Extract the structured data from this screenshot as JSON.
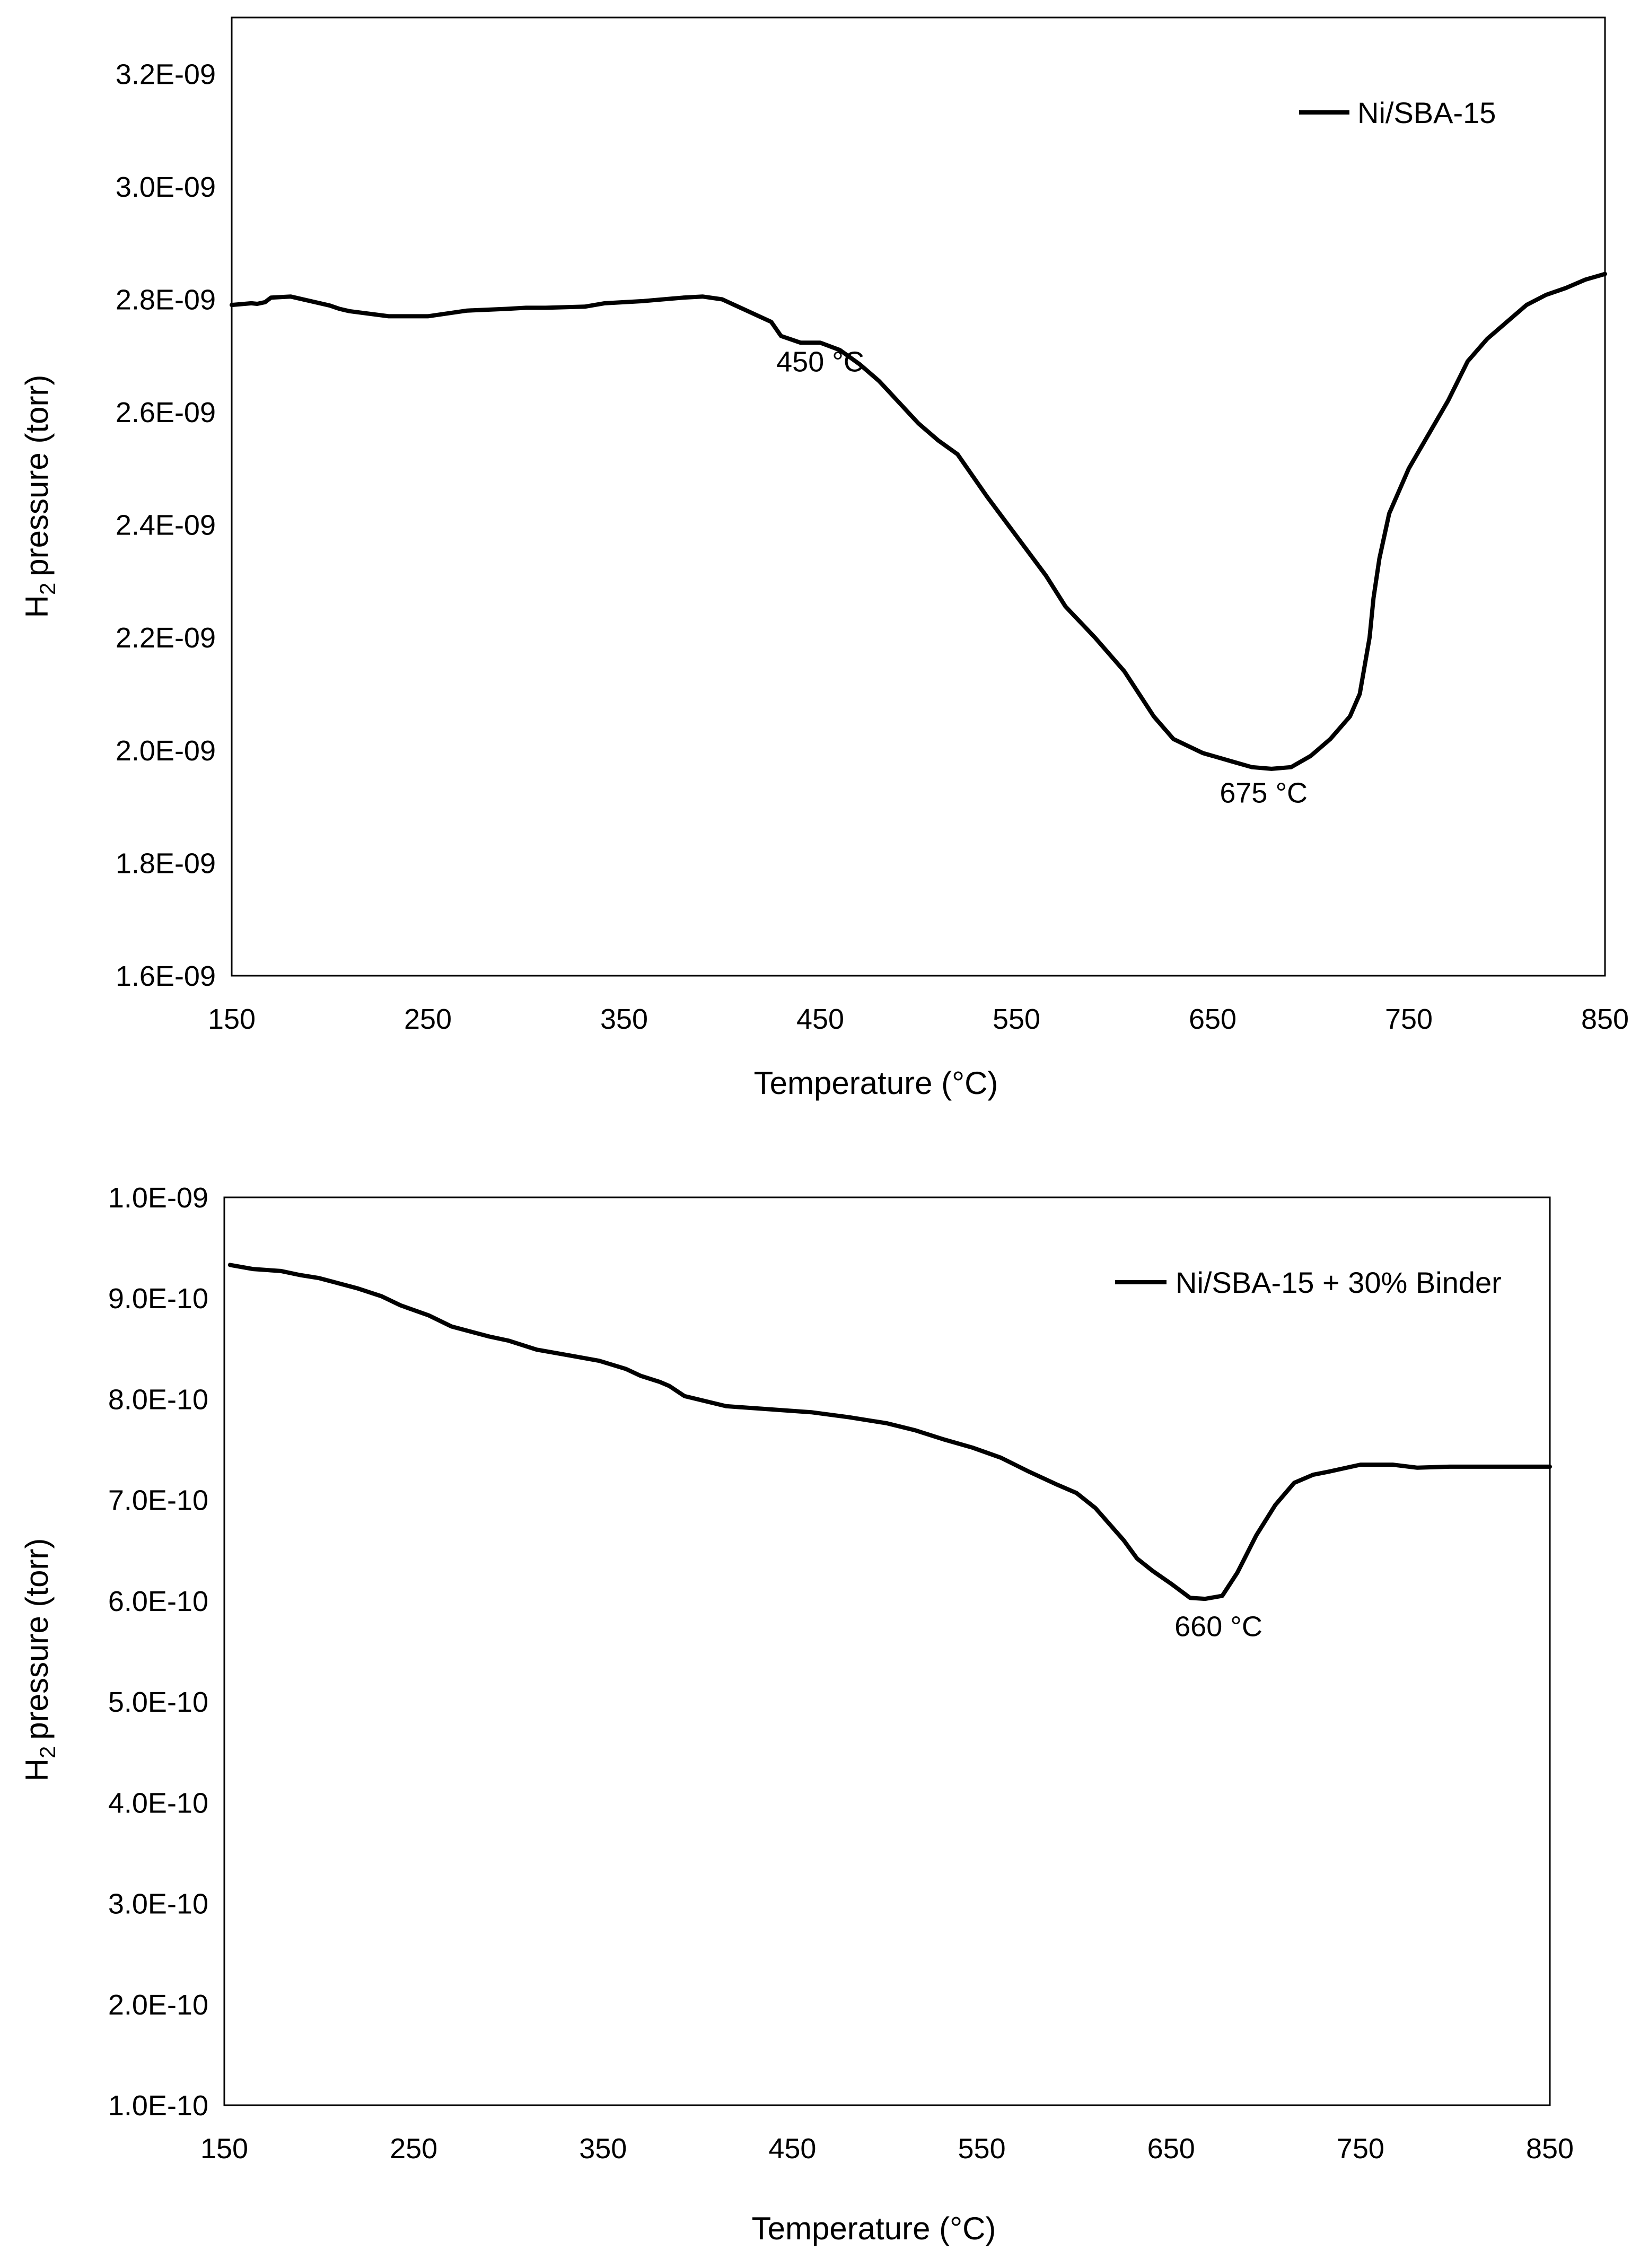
{
  "chart_data": [
    {
      "type": "line",
      "title": "",
      "xlabel": "Temperature (°C)",
      "ylabel": "pressure (torr)",
      "ylabel_main": "H",
      "ylabel_sub": "2",
      "xlim": [
        150,
        850
      ],
      "ylim": [
        1.6e-09,
        3.3e-09
      ],
      "grid": false,
      "legend_position": "top-right",
      "x_ticks": [
        150,
        250,
        350,
        450,
        550,
        650,
        750,
        850
      ],
      "x_tick_labels": [
        "150",
        "250",
        "350",
        "450",
        "550",
        "650",
        "750",
        "850"
      ],
      "y_ticks": [
        1.6e-09,
        1.8e-09,
        2e-09,
        2.2e-09,
        2.4e-09,
        2.6e-09,
        2.8e-09,
        3e-09,
        3.2e-09
      ],
      "y_tick_labels": [
        "1.6E-09",
        "1.8E-09",
        "2.0E-09",
        "2.2E-09",
        "2.4E-09",
        "2.6E-09",
        "2.8E-09",
        "3.0E-09",
        "3.2E-09"
      ],
      "series": [
        {
          "name": "Ni/SBA-15",
          "color": "#000000",
          "x": [
            150,
            160,
            163,
            167,
            170,
            180,
            190,
            200,
            205,
            210,
            230,
            250,
            270,
            290,
            300,
            310,
            330,
            340,
            360,
            380,
            390,
            400,
            425,
            430,
            440,
            450,
            460,
            470,
            480,
            500,
            510,
            520,
            535,
            550,
            565,
            575,
            590,
            605,
            620,
            630,
            645,
            660,
            670,
            680,
            690,
            700,
            710,
            720,
            725,
            728,
            730,
            732,
            735,
            740,
            750,
            770,
            780,
            790,
            800,
            810,
            820,
            830,
            840,
            850
          ],
          "y": [
            2.79e-09,
            2.793e-09,
            2.792e-09,
            2.795e-09,
            2.803e-09,
            2.805e-09,
            2.797e-09,
            2.789e-09,
            2.783e-09,
            2.779e-09,
            2.77e-09,
            2.77e-09,
            2.78e-09,
            2.783e-09,
            2.785e-09,
            2.785e-09,
            2.787e-09,
            2.793e-09,
            2.797e-09,
            2.803e-09,
            2.805e-09,
            2.8e-09,
            2.76e-09,
            2.735e-09,
            2.723e-09,
            2.723e-09,
            2.71e-09,
            2.685e-09,
            2.655e-09,
            2.58e-09,
            2.55e-09,
            2.525e-09,
            2.45e-09,
            2.38e-09,
            2.31e-09,
            2.255e-09,
            2.2e-09,
            2.14e-09,
            2.06e-09,
            2.02e-09,
            1.995e-09,
            1.98e-09,
            1.97e-09,
            1.967e-09,
            1.97e-09,
            1.99e-09,
            2.02e-09,
            2.06e-09,
            2.1e-09,
            2.16e-09,
            2.2e-09,
            2.27e-09,
            2.34e-09,
            2.42e-09,
            2.5e-09,
            2.62e-09,
            2.69e-09,
            2.73e-09,
            2.76e-09,
            2.79e-09,
            2.808e-09,
            2.82e-09,
            2.835e-09,
            2.845e-09
          ]
        }
      ],
      "annotations": [
        {
          "text": "450 °C",
          "x": 450,
          "y": 2.69e-09
        },
        {
          "text": "675 °C",
          "x": 676,
          "y": 1.925e-09
        }
      ]
    },
    {
      "type": "line",
      "title": "",
      "xlabel": "Temperature (°C)",
      "ylabel": "pressure (torr)",
      "ylabel_main": "H",
      "ylabel_sub": "2",
      "xlim": [
        150,
        850
      ],
      "ylim": [
        1e-10,
        1e-09
      ],
      "grid": false,
      "legend_position": "top-right",
      "x_ticks": [
        150,
        250,
        350,
        450,
        550,
        650,
        750,
        850
      ],
      "x_tick_labels": [
        "150",
        "250",
        "350",
        "450",
        "550",
        "650",
        "750",
        "850"
      ],
      "y_ticks": [
        1e-10,
        2e-10,
        3e-10,
        4e-10,
        5e-10,
        6e-10,
        7e-10,
        8e-10,
        9e-10,
        1e-09
      ],
      "y_tick_labels": [
        "1.0E-10",
        "2.0E-10",
        "3.0E-10",
        "4.0E-10",
        "5.0E-10",
        "6.0E-10",
        "7.0E-10",
        "8.0E-10",
        "9.0E-10",
        "1.0E-09"
      ],
      "series": [
        {
          "name": "Ni/SBA-15 + 30% Binder",
          "color": "#000000",
          "x": [
            153,
            165,
            180,
            190,
            200,
            210,
            220,
            233,
            243,
            258,
            270,
            290,
            300,
            315,
            333,
            348,
            362,
            370,
            380,
            385,
            393,
            415,
            460,
            480,
            500,
            515,
            530,
            545,
            560,
            575,
            590,
            600,
            610,
            625,
            632,
            640,
            650,
            660,
            668,
            677,
            685,
            695,
            705,
            715,
            725,
            733,
            750,
            767,
            780,
            797,
            830,
            850
          ],
          "y": [
            9.33e-10,
            9.29e-10,
            9.27e-10,
            9.23e-10,
            9.2e-10,
            9.15e-10,
            9.1e-10,
            9.02e-10,
            8.93e-10,
            8.83e-10,
            8.72e-10,
            8.62e-10,
            8.58e-10,
            8.49e-10,
            8.43e-10,
            8.38e-10,
            8.3e-10,
            8.23e-10,
            8.17e-10,
            8.13e-10,
            8.03e-10,
            7.93e-10,
            7.87e-10,
            7.82e-10,
            7.76e-10,
            7.69e-10,
            7.6e-10,
            7.52e-10,
            7.42e-10,
            7.28e-10,
            7.15e-10,
            7.07e-10,
            6.92e-10,
            6.6e-10,
            6.42e-10,
            6.3e-10,
            6.17e-10,
            6.03e-10,
            6.02e-10,
            6.05e-10,
            6.28e-10,
            6.65e-10,
            6.95e-10,
            7.17e-10,
            7.25e-10,
            7.28e-10,
            7.35e-10,
            7.35e-10,
            7.32e-10,
            7.33e-10,
            7.33e-10,
            7.33e-10
          ]
        }
      ],
      "annotations": [
        {
          "text": "660 °C",
          "x": 675,
          "y": 5.75e-10
        }
      ]
    }
  ]
}
